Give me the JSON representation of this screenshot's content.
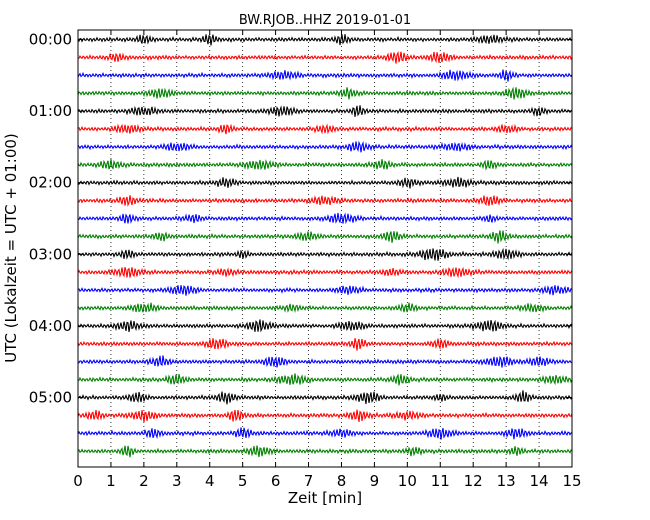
{
  "chart_data": {
    "type": "line",
    "title": "BW.RJOB..HHZ 2019-01-01",
    "xlabel": "Zeit  [min]",
    "ylabel": "UTC (Lokalzeit = UTC + 01:00)",
    "xlim": [
      0,
      15
    ],
    "x_ticks": [
      "0",
      "1",
      "2",
      "3",
      "4",
      "5",
      "6",
      "7",
      "8",
      "9",
      "10",
      "11",
      "12",
      "13",
      "14",
      "15"
    ],
    "y_ticks": [
      "00:00",
      "01:00",
      "02:00",
      "03:00",
      "04:00",
      "05:00"
    ],
    "grid": "vertical dotted at each minute",
    "trace_minutes": 15,
    "trace_count": 24,
    "color_cycle": [
      "#000000",
      "#ff0000",
      "#0000ff",
      "#008000"
    ],
    "series": [
      {
        "start": "00:00",
        "bursts_min": [
          2.0,
          4.0,
          8.0,
          12.5
        ]
      },
      {
        "start": "00:15",
        "bursts_min": [
          1.2,
          9.7,
          11.0
        ]
      },
      {
        "start": "00:30",
        "bursts_min": [
          6.2,
          11.5,
          13.0
        ]
      },
      {
        "start": "00:45",
        "bursts_min": [
          2.5,
          8.2,
          13.3
        ]
      },
      {
        "start": "01:00",
        "bursts_min": [
          2.0,
          6.2,
          8.5,
          14.0
        ]
      },
      {
        "start": "01:15",
        "bursts_min": [
          1.5,
          4.5,
          7.5,
          13.0
        ]
      },
      {
        "start": "01:30",
        "bursts_min": [
          3.0,
          8.5,
          11.5
        ]
      },
      {
        "start": "01:45",
        "bursts_min": [
          1.0,
          5.5,
          9.2,
          12.5
        ]
      },
      {
        "start": "02:00",
        "bursts_min": [
          4.5,
          10.0,
          11.5
        ]
      },
      {
        "start": "02:15",
        "bursts_min": [
          1.5,
          7.5,
          12.5
        ]
      },
      {
        "start": "02:30",
        "bursts_min": [
          1.5,
          3.5,
          8.0,
          12.5
        ]
      },
      {
        "start": "02:45",
        "bursts_min": [
          2.5,
          7.0,
          9.5,
          12.8
        ]
      },
      {
        "start": "03:00",
        "bursts_min": [
          1.5,
          5.0,
          10.8,
          13.0
        ]
      },
      {
        "start": "03:15",
        "bursts_min": [
          1.5,
          4.5,
          9.5,
          11.5
        ]
      },
      {
        "start": "03:30",
        "bursts_min": [
          3.2,
          8.2,
          14.5
        ]
      },
      {
        "start": "03:45",
        "bursts_min": [
          2.0,
          6.5,
          10.0,
          13.8
        ]
      },
      {
        "start": "04:00",
        "bursts_min": [
          1.5,
          5.5,
          8.3,
          12.5
        ]
      },
      {
        "start": "04:15",
        "bursts_min": [
          4.2,
          8.5,
          11.0
        ]
      },
      {
        "start": "04:30",
        "bursts_min": [
          2.5,
          6.0,
          12.8,
          14.0
        ]
      },
      {
        "start": "04:45",
        "bursts_min": [
          3.0,
          6.5,
          9.8,
          14.5
        ]
      },
      {
        "start": "05:00",
        "bursts_min": [
          1.8,
          4.5,
          8.8,
          11.0,
          13.5
        ]
      },
      {
        "start": "05:15",
        "bursts_min": [
          0.5,
          2.0,
          4.8,
          8.5,
          10.0
        ]
      },
      {
        "start": "05:30",
        "bursts_min": [
          2.3,
          5.0,
          8.0,
          11.0,
          13.3
        ]
      },
      {
        "start": "05:45",
        "bursts_min": [
          1.5,
          5.5,
          10.2,
          13.3
        ]
      }
    ]
  }
}
